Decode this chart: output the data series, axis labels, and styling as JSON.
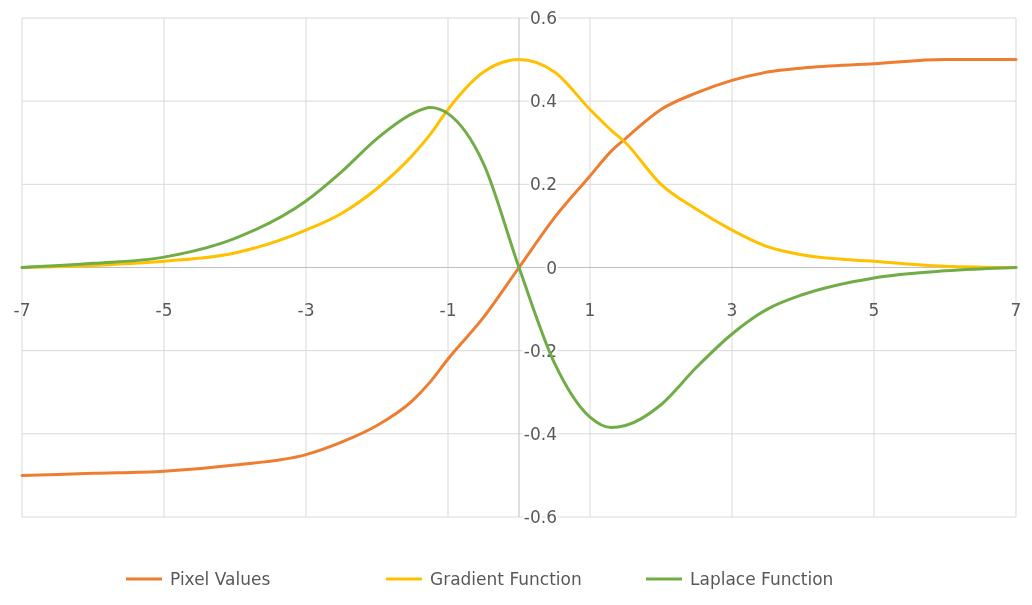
{
  "chart_data": {
    "type": "line",
    "x": [
      -7,
      -6,
      -5,
      -4,
      -3,
      -2.5,
      -2,
      -1.5,
      -1.25,
      -1,
      -0.5,
      0,
      0.5,
      1,
      1.3,
      1.5,
      2,
      2.5,
      3,
      3.5,
      4,
      5,
      6,
      7
    ],
    "series": [
      {
        "name": "Pixel Values",
        "color": "#ed7d31",
        "values": [
          -0.5,
          -0.495,
          -0.49,
          -0.475,
          -0.45,
          -0.42,
          -0.38,
          -0.32,
          -0.275,
          -0.22,
          -0.12,
          0,
          0.12,
          0.22,
          0.28,
          0.31,
          0.38,
          0.42,
          0.45,
          0.47,
          0.48,
          0.49,
          0.5,
          0.5
        ]
      },
      {
        "name": "Gradient Function",
        "color": "#ffc000",
        "values": [
          0,
          0.005,
          0.015,
          0.035,
          0.09,
          0.13,
          0.19,
          0.27,
          0.32,
          0.38,
          0.47,
          0.5,
          0.47,
          0.38,
          0.33,
          0.3,
          0.2,
          0.14,
          0.09,
          0.05,
          0.03,
          0.015,
          0.003,
          0
        ]
      },
      {
        "name": "Laplace Function",
        "color": "#70ad47",
        "values": [
          0,
          0.01,
          0.025,
          0.07,
          0.16,
          0.23,
          0.31,
          0.37,
          0.385,
          0.37,
          0.25,
          0,
          -0.23,
          -0.36,
          -0.385,
          -0.38,
          -0.33,
          -0.24,
          -0.16,
          -0.1,
          -0.065,
          -0.025,
          -0.008,
          0
        ]
      }
    ],
    "xlim": [
      -7,
      7
    ],
    "ylim": [
      -0.6,
      0.6
    ],
    "xticks": [
      -7,
      -5,
      -3,
      -1,
      1,
      3,
      5,
      7
    ],
    "yticks": [
      -0.6,
      -0.4,
      -0.2,
      {
        "value": 0,
        "label": "0"
      },
      0.2,
      0.4,
      0.6
    ],
    "grid": true,
    "legend": "bottom",
    "marker": "none",
    "line_style": "solid"
  }
}
